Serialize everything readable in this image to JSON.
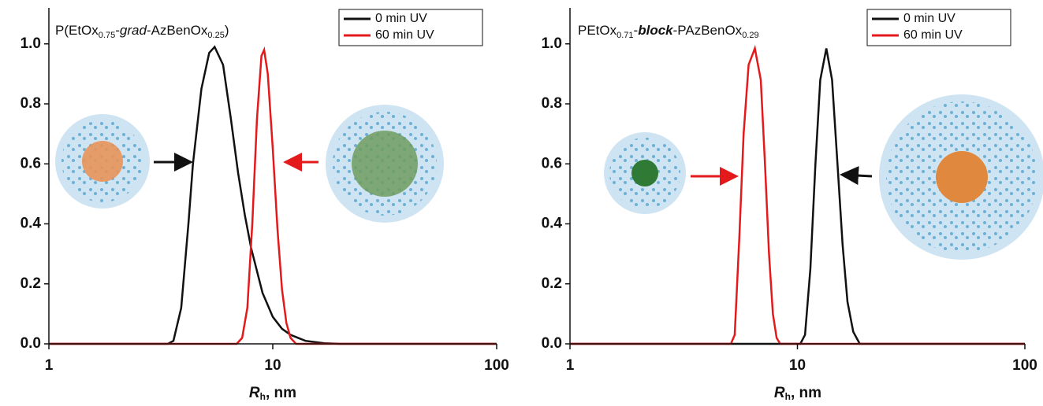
{
  "chart_data": [
    {
      "type": "line",
      "title": [
        "P(EtOx",
        "0.75",
        "-",
        "grad",
        "-AzBenOx",
        "0.25",
        ")"
      ],
      "x_label": [
        "R",
        "h",
        ", nm"
      ],
      "xlim": [
        1,
        100
      ],
      "xticks": [
        1,
        10,
        100
      ],
      "xscale": "log",
      "ylim": [
        0,
        1.12
      ],
      "yticks": [
        {
          "value": 0,
          "label": "0.0"
        },
        {
          "value": 0.2,
          "label": "0.2"
        },
        {
          "value": 0.4,
          "label": "0.4"
        },
        {
          "value": 0.6,
          "label": "0.6"
        },
        {
          "value": 0.8,
          "label": "0.8"
        },
        {
          "value": 1,
          "label": "1.0"
        }
      ],
      "legend": "top-right",
      "series": [
        {
          "name": "0 min UV",
          "color": "#111111",
          "x": [
            1,
            3.4,
            3.6,
            3.9,
            4.2,
            4.4,
            4.8,
            5.2,
            5.5,
            6.0,
            6.5,
            7.0,
            7.5,
            8,
            9,
            10,
            11,
            12,
            14,
            17,
            20,
            100
          ],
          "values": [
            0,
            0,
            0.01,
            0.12,
            0.4,
            0.6,
            0.85,
            0.97,
            0.99,
            0.93,
            0.75,
            0.57,
            0.43,
            0.32,
            0.17,
            0.09,
            0.05,
            0.03,
            0.01,
            0.002,
            0,
            0
          ]
        },
        {
          "name": "60 min UV",
          "color": "#e3191c",
          "x": [
            1,
            6.9,
            7.3,
            7.7,
            8.1,
            8.5,
            8.9,
            9.15,
            9.5,
            10,
            10.5,
            11,
            11.5,
            12,
            12.7,
            100
          ],
          "values": [
            0,
            0,
            0.02,
            0.12,
            0.4,
            0.75,
            0.96,
            0.98,
            0.9,
            0.65,
            0.38,
            0.18,
            0.07,
            0.02,
            0,
            0
          ]
        }
      ]
    },
    {
      "type": "line",
      "title": [
        "PEtOx",
        "0.71",
        "-",
        "block",
        "-PAzBenOx",
        "0.29"
      ],
      "x_label": [
        "R",
        "h",
        ", nm"
      ],
      "xlim": [
        1,
        100
      ],
      "xticks": [
        1,
        10,
        100
      ],
      "xscale": "log",
      "ylim": [
        0,
        1.12
      ],
      "yticks": [
        {
          "value": 0,
          "label": "0.0"
        },
        {
          "value": 0.2,
          "label": "0.2"
        },
        {
          "value": 0.4,
          "label": "0.4"
        },
        {
          "value": 0.6,
          "label": "0.6"
        },
        {
          "value": 0.8,
          "label": "0.8"
        },
        {
          "value": 1,
          "label": "1.0"
        }
      ],
      "legend": "top-right",
      "series": [
        {
          "name": "0 min UV",
          "color": "#111111",
          "x": [
            1,
            10.3,
            10.8,
            11.4,
            12.0,
            12.6,
            13.4,
            14.2,
            15.0,
            15.8,
            16.6,
            17.6,
            18.8,
            100
          ],
          "values": [
            0,
            0,
            0.03,
            0.25,
            0.6,
            0.88,
            0.985,
            0.88,
            0.6,
            0.33,
            0.14,
            0.04,
            0,
            0
          ]
        },
        {
          "name": "60 min UV",
          "color": "#e3191c",
          "x": [
            1,
            5.1,
            5.3,
            5.55,
            5.8,
            6.1,
            6.5,
            6.9,
            7.2,
            7.5,
            7.8,
            8.1,
            8.4,
            100
          ],
          "values": [
            0,
            0,
            0.03,
            0.35,
            0.7,
            0.93,
            0.985,
            0.88,
            0.6,
            0.3,
            0.1,
            0.02,
            0,
            0
          ]
        }
      ]
    }
  ]
}
